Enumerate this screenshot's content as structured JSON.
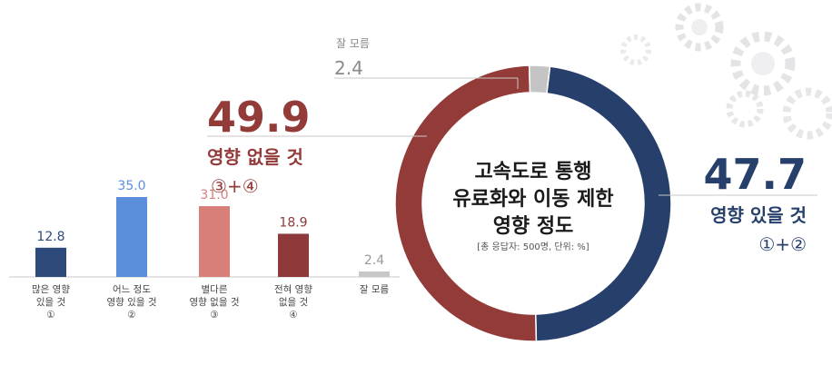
{
  "chart_data": [
    {
      "type": "bar",
      "categories": [
        [
          "많은 영향",
          "있을 것",
          "①"
        ],
        [
          "어느 정도",
          "영향 있을 것",
          "②"
        ],
        [
          "별다른",
          "영향 없을 것",
          "③"
        ],
        [
          "전혀 영향",
          "없을 것",
          "④"
        ],
        [
          "잘 모름"
        ]
      ],
      "values": [
        12.8,
        35.0,
        31.0,
        18.9,
        2.4
      ],
      "value_labels": [
        "12.8",
        "35.0",
        "31.0",
        "18.9",
        "2.4"
      ],
      "colors": [
        "#2e4a7a",
        "#5b8fdc",
        "#d97f7a",
        "#8e3a3a",
        "#c8c8c8"
      ],
      "value_colors": [
        "#2e4a7a",
        "#5b8fdc",
        "#d97f7a",
        "#8e3a3a",
        "#9a9a9a"
      ],
      "ylim": [
        0,
        40
      ]
    },
    {
      "type": "pie",
      "title_lines": [
        "고속도로 통행",
        "유료화와 이동 제한",
        "영향 정도"
      ],
      "note": "[총 응답자: 500명, 단위: %]",
      "slices": [
        {
          "label_lines": [
            "영향 있을 것",
            "①+②"
          ],
          "value": 47.7,
          "value_label": "47.7",
          "color": "#27406b"
        },
        {
          "label_lines": [
            "영향 없을 것",
            "③+④"
          ],
          "value": 49.9,
          "value_label": "49.9",
          "color": "#923b39"
        },
        {
          "label_lines": [
            "잘 모름"
          ],
          "value": 2.4,
          "value_label": "2.4",
          "color": "#c4c4c4"
        }
      ]
    }
  ]
}
